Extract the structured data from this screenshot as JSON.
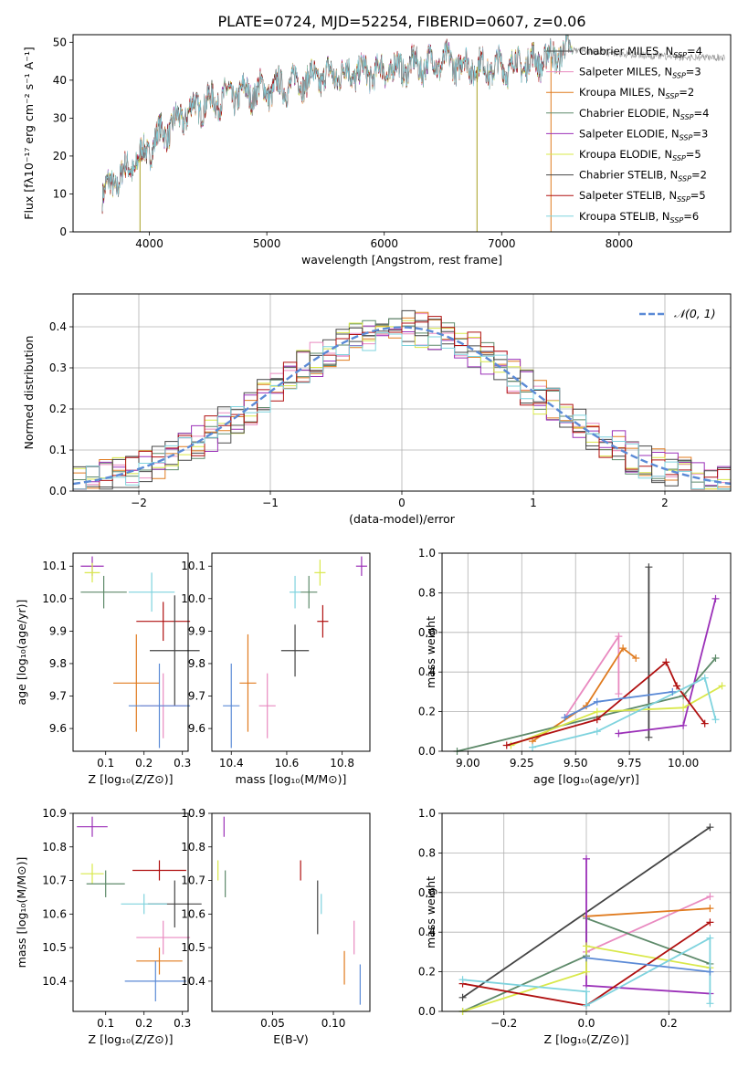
{
  "figure_title": "PLATE=0724, MJD=52254, FIBERID=0607, z=0.06",
  "model_colors": [
    "#4a4a4a",
    "#e98ac0",
    "#e07b1f",
    "#5e8a6a",
    "#9b30b8",
    "#d9e84a",
    "#444444",
    "#b01010",
    "#7fd3de"
  ],
  "chart_data": [
    {
      "id": "spectrum",
      "type": "line",
      "xlabel": "wavelength [Angstrom, rest frame]",
      "ylabel": "Flux [fλ10⁻¹⁷ erg cm⁻² s⁻¹ A⁻¹]",
      "xlim": [
        3350,
        8950
      ],
      "ylim": [
        0,
        52
      ],
      "xticks": [
        4000,
        5000,
        6000,
        7000,
        8000
      ],
      "yticks": [
        0,
        10,
        20,
        30,
        40,
        50
      ],
      "legend_position": "right",
      "legend": [
        {
          "label": "Chabrier MILES, N",
          "sub": "SSP",
          "n": "=4"
        },
        {
          "label": "Salpeter MILES, N",
          "sub": "SSP",
          "n": "=3"
        },
        {
          "label": "Kroupa MILES, N",
          "sub": "SSP",
          "n": "=2"
        },
        {
          "label": "Chabrier ELODIE, N",
          "sub": "SSP",
          "n": "=4"
        },
        {
          "label": "Salpeter ELODIE, N",
          "sub": "SSP",
          "n": "=3"
        },
        {
          "label": "Kroupa ELODIE, N",
          "sub": "SSP",
          "n": "=5"
        },
        {
          "label": "Chabrier STELIB, N",
          "sub": "SSP",
          "n": "=2"
        },
        {
          "label": "Salpeter STELIB, N",
          "sub": "SSP",
          "n": "=5"
        },
        {
          "label": "Kroupa STELIB, N",
          "sub": "SSP",
          "n": "=6"
        }
      ],
      "envelope": [
        [
          3600,
          10
        ],
        [
          3700,
          13
        ],
        [
          3800,
          16
        ],
        [
          3900,
          19
        ],
        [
          4000,
          22
        ],
        [
          4100,
          26
        ],
        [
          4200,
          28
        ],
        [
          4300,
          31
        ],
        [
          4400,
          33
        ],
        [
          4500,
          34
        ],
        [
          4700,
          36
        ],
        [
          4900,
          37
        ],
        [
          5100,
          38
        ],
        [
          5300,
          40
        ],
        [
          5500,
          41
        ],
        [
          5700,
          42
        ],
        [
          5900,
          42
        ],
        [
          6100,
          43
        ],
        [
          6300,
          44
        ],
        [
          6500,
          45
        ],
        [
          6700,
          44
        ],
        [
          6900,
          43
        ],
        [
          7100,
          44
        ],
        [
          7300,
          45
        ],
        [
          7500,
          47
        ],
        [
          7600,
          48
        ],
        [
          8000,
          47
        ],
        [
          8500,
          46
        ],
        [
          8900,
          46
        ]
      ],
      "data_end": 7600,
      "spikes": [
        [
          3920,
          0
        ],
        [
          6790,
          0
        ],
        [
          7420,
          0
        ]
      ]
    },
    {
      "id": "residual_histogram",
      "type": "step",
      "xlabel": "(data-model)/error",
      "ylabel": "Normed distribution",
      "xlim": [
        -2.5,
        2.5
      ],
      "ylim": [
        0,
        0.48
      ],
      "xticks": [
        -2,
        -1,
        0,
        1,
        2
      ],
      "yticks": [
        0.0,
        0.1,
        0.2,
        0.3,
        0.4
      ],
      "grid": true,
      "legend_position": "top-right",
      "reference_label": "𝒩(0, 1)",
      "reference_color": "#5b8ad6",
      "bin_width": 0.1
    },
    {
      "id": "age_vs_Z",
      "type": "errorbar",
      "xlabel": "Z [log₁₀(Z/Z⊙)]",
      "ylabel": "age  [log₁₀(age/yr)]",
      "xlim": [
        0.015,
        0.315
      ],
      "ylim": [
        9.53,
        10.14
      ],
      "xticks": [
        0.1,
        0.2,
        0.3
      ],
      "yticks": [
        9.6,
        9.7,
        9.8,
        9.9,
        10.0,
        10.1
      ],
      "points": [
        {
          "c": "#9b30b8",
          "x": 0.065,
          "xe": 0.03,
          "y": 10.1,
          "ye": 0.03
        },
        {
          "c": "#d9e84a",
          "x": 0.065,
          "xe": 0.02,
          "y": 10.08,
          "ye": 0.03
        },
        {
          "c": "#5e8a6a",
          "x": 0.095,
          "xe": 0.06,
          "y": 10.02,
          "ye": 0.05
        },
        {
          "c": "#7fd3de",
          "x": 0.22,
          "xe": 0.06,
          "y": 10.02,
          "ye": 0.06
        },
        {
          "c": "#b01010",
          "x": 0.25,
          "xe": 0.07,
          "y": 9.93,
          "ye": 0.06
        },
        {
          "c": "#444444",
          "x": 0.28,
          "xe": 0.065,
          "y": 9.84,
          "ye": 0.17
        },
        {
          "c": "#e07b1f",
          "x": 0.18,
          "xe": 0.06,
          "y": 9.74,
          "ye": 0.15
        },
        {
          "c": "#e98ac0",
          "x": 0.25,
          "xe": 0.06,
          "y": 9.67,
          "ye": 0.1
        },
        {
          "c": "#5b8ad6",
          "x": 0.24,
          "xe": 0.08,
          "y": 9.67,
          "ye": 0.13
        }
      ]
    },
    {
      "id": "age_vs_mass",
      "type": "errorbar",
      "xlabel": "mass [log₁₀(M/M⊙)]",
      "ylabel": "",
      "xlim": [
        10.33,
        10.9
      ],
      "ylim": [
        9.53,
        10.14
      ],
      "xticks": [
        10.4,
        10.6,
        10.8
      ],
      "yticks": [
        9.6,
        9.7,
        9.8,
        9.9,
        10.0,
        10.1
      ],
      "points": [
        {
          "c": "#9b30b8",
          "x": 10.87,
          "xe": 0.02,
          "y": 10.1,
          "ye": 0.03
        },
        {
          "c": "#d9e84a",
          "x": 10.72,
          "xe": 0.02,
          "y": 10.08,
          "ye": 0.04
        },
        {
          "c": "#5e8a6a",
          "x": 10.68,
          "xe": 0.03,
          "y": 10.02,
          "ye": 0.05
        },
        {
          "c": "#7fd3de",
          "x": 10.63,
          "xe": 0.02,
          "y": 10.02,
          "ye": 0.05
        },
        {
          "c": "#b01010",
          "x": 10.73,
          "xe": 0.02,
          "y": 9.93,
          "ye": 0.05
        },
        {
          "c": "#444444",
          "x": 10.63,
          "xe": 0.05,
          "y": 9.84,
          "ye": 0.08
        },
        {
          "c": "#e07b1f",
          "x": 10.46,
          "xe": 0.03,
          "y": 9.74,
          "ye": 0.15
        },
        {
          "c": "#e98ac0",
          "x": 10.53,
          "xe": 0.03,
          "y": 9.67,
          "ye": 0.1
        },
        {
          "c": "#5b8ad6",
          "x": 10.4,
          "xe": 0.03,
          "y": 9.67,
          "ye": 0.13
        }
      ]
    },
    {
      "id": "mass_weight_vs_age",
      "type": "line",
      "xlabel": "age  [log₁₀(age/yr)]",
      "ylabel": "mass weight",
      "xlim": [
        8.88,
        10.22
      ],
      "ylim": [
        0,
        1.0
      ],
      "xticks": [
        9.0,
        9.25,
        9.5,
        9.75,
        10.0
      ],
      "xticklabels": [
        "9.00",
        "9.25",
        "9.50",
        "9.75",
        "10.00"
      ],
      "yticks": [
        0.0,
        0.2,
        0.4,
        0.6,
        0.8,
        1.0
      ],
      "grid": true,
      "series": [
        {
          "c": "#444444",
          "pts": [
            [
              9.84,
              0.93
            ],
            [
              9.84,
              0.07
            ]
          ]
        },
        {
          "c": "#e98ac0",
          "pts": [
            [
              9.45,
              0.17
            ],
            [
              9.7,
              0.58
            ],
            [
              9.7,
              0.29
            ]
          ]
        },
        {
          "c": "#e07b1f",
          "pts": [
            [
              9.3,
              0.05
            ],
            [
              9.55,
              0.23
            ],
            [
              9.72,
              0.52
            ],
            [
              9.78,
              0.47
            ]
          ]
        },
        {
          "c": "#5e8a6a",
          "pts": [
            [
              8.95,
              0.0
            ],
            [
              10.0,
              0.28
            ],
            [
              10.15,
              0.47
            ]
          ]
        },
        {
          "c": "#9b30b8",
          "pts": [
            [
              9.7,
              0.09
            ],
            [
              10.0,
              0.13
            ],
            [
              10.15,
              0.77
            ]
          ]
        },
        {
          "c": "#d9e84a",
          "pts": [
            [
              9.2,
              0.03
            ],
            [
              9.6,
              0.2
            ],
            [
              10.0,
              0.22
            ],
            [
              10.18,
              0.33
            ]
          ]
        },
        {
          "c": "#b01010",
          "pts": [
            [
              9.18,
              0.03
            ],
            [
              9.6,
              0.16
            ],
            [
              9.92,
              0.45
            ],
            [
              9.97,
              0.33
            ],
            [
              10.1,
              0.14
            ]
          ]
        },
        {
          "c": "#7fd3de",
          "pts": [
            [
              9.3,
              0.02
            ],
            [
              9.6,
              0.1
            ],
            [
              10.1,
              0.37
            ],
            [
              10.15,
              0.16
            ]
          ]
        },
        {
          "c": "#5b8ad6",
          "pts": [
            [
              9.45,
              0.17
            ],
            [
              9.6,
              0.25
            ],
            [
              9.95,
              0.3
            ]
          ]
        }
      ]
    },
    {
      "id": "mass_vs_Z",
      "type": "errorbar",
      "xlabel": "Z [log₁₀(Z/Z⊙)]",
      "ylabel": "mass [log₁₀(M/M⊙)]",
      "xlim": [
        0.015,
        0.315
      ],
      "ylim": [
        10.31,
        10.9
      ],
      "xticks": [
        0.1,
        0.2,
        0.3
      ],
      "yticks": [
        10.4,
        10.5,
        10.6,
        10.7,
        10.8,
        10.9
      ],
      "points": [
        {
          "c": "#9b30b8",
          "x": 0.065,
          "xe": 0.04,
          "y": 10.86,
          "ye": 0.03
        },
        {
          "c": "#d9e84a",
          "x": 0.065,
          "xe": 0.03,
          "y": 10.72,
          "ye": 0.03
        },
        {
          "c": "#5e8a6a",
          "x": 0.1,
          "xe": 0.05,
          "y": 10.69,
          "ye": 0.04
        },
        {
          "c": "#b01010",
          "x": 0.24,
          "xe": 0.07,
          "y": 10.73,
          "ye": 0.03
        },
        {
          "c": "#444444",
          "x": 0.28,
          "xe": 0.07,
          "y": 10.63,
          "ye": 0.07
        },
        {
          "c": "#7fd3de",
          "x": 0.2,
          "xe": 0.06,
          "y": 10.63,
          "ye": 0.03
        },
        {
          "c": "#e98ac0",
          "x": 0.25,
          "xe": 0.07,
          "y": 10.53,
          "ye": 0.05
        },
        {
          "c": "#e07b1f",
          "x": 0.24,
          "xe": 0.06,
          "y": 10.46,
          "ye": 0.04
        },
        {
          "c": "#5b8ad6",
          "x": 0.23,
          "xe": 0.08,
          "y": 10.4,
          "ye": 0.06
        }
      ]
    },
    {
      "id": "mass_vs_ebv",
      "type": "errorbar",
      "xlabel": "E(B-V)",
      "ylabel": "",
      "xlim": [
        0.0,
        0.13
      ],
      "ylim": [
        10.31,
        10.9
      ],
      "xticks": [
        0.05,
        0.1
      ],
      "xticklabels": [
        "0.05",
        "0.10"
      ],
      "yticks": [
        10.4,
        10.5,
        10.6,
        10.7,
        10.8,
        10.9
      ],
      "points": [
        {
          "c": "#9b30b8",
          "x": 0.01,
          "xe": 0,
          "y": 10.86,
          "ye": 0.03
        },
        {
          "c": "#d9e84a",
          "x": 0.005,
          "xe": 0,
          "y": 10.73,
          "ye": 0.03
        },
        {
          "c": "#5e8a6a",
          "x": 0.011,
          "xe": 0,
          "y": 10.69,
          "ye": 0.04
        },
        {
          "c": "#b01010",
          "x": 0.073,
          "xe": 0,
          "y": 10.73,
          "ye": 0.03
        },
        {
          "c": "#444444",
          "x": 0.087,
          "xe": 0,
          "y": 10.62,
          "ye": 0.08
        },
        {
          "c": "#7fd3de",
          "x": 0.09,
          "xe": 0,
          "y": 10.63,
          "ye": 0.03
        },
        {
          "c": "#e98ac0",
          "x": 0.117,
          "xe": 0,
          "y": 10.53,
          "ye": 0.05
        },
        {
          "c": "#e07b1f",
          "x": 0.109,
          "xe": 0,
          "y": 10.44,
          "ye": 0.05
        },
        {
          "c": "#5b8ad6",
          "x": 0.122,
          "xe": 0,
          "y": 10.39,
          "ye": 0.06
        }
      ]
    },
    {
      "id": "mass_weight_vs_Z",
      "type": "line",
      "xlabel": "Z [log₁₀(Z/Z⊙)]",
      "ylabel": "mass weight",
      "xlim": [
        -0.35,
        0.35
      ],
      "ylim": [
        0,
        1.0
      ],
      "xticks": [
        -0.2,
        0.0,
        0.2
      ],
      "xticklabels": [
        "−0.2",
        "0.0",
        "0.2"
      ],
      "yticks": [
        0.0,
        0.2,
        0.4,
        0.6,
        0.8,
        1.0
      ],
      "grid": true,
      "series": [
        {
          "c": "#444444",
          "pts": [
            [
              -0.3,
              0.07
            ],
            [
              0.3,
              0.93
            ]
          ]
        },
        {
          "c": "#e98ac0",
          "pts": [
            [
              0.0,
              0.3
            ],
            [
              0.3,
              0.58
            ]
          ]
        },
        {
          "c": "#e07b1f",
          "pts": [
            [
              0.0,
              0.48
            ],
            [
              0.3,
              0.52
            ]
          ]
        },
        {
          "c": "#5e8a6a",
          "pts": [
            [
              -0.3,
              0.0
            ],
            [
              0.0,
              0.28
            ],
            [
              0.0,
              0.47
            ],
            [
              0.3,
              0.24
            ]
          ]
        },
        {
          "c": "#9b30b8",
          "pts": [
            [
              0.0,
              0.77
            ],
            [
              0.0,
              0.13
            ],
            [
              0.3,
              0.09
            ]
          ]
        },
        {
          "c": "#d9e84a",
          "pts": [
            [
              -0.3,
              0.0
            ],
            [
              0.0,
              0.2
            ],
            [
              0.0,
              0.33
            ],
            [
              0.3,
              0.22
            ]
          ]
        },
        {
          "c": "#b01010",
          "pts": [
            [
              -0.3,
              0.14
            ],
            [
              0.0,
              0.03
            ],
            [
              0.3,
              0.45
            ]
          ]
        },
        {
          "c": "#7fd3de",
          "pts": [
            [
              -0.3,
              0.16
            ],
            [
              0.0,
              0.1
            ],
            [
              0.0,
              0.03
            ],
            [
              0.3,
              0.37
            ],
            [
              0.3,
              0.04
            ]
          ]
        },
        {
          "c": "#5b8ad6",
          "pts": [
            [
              0.0,
              0.27
            ],
            [
              0.3,
              0.2
            ]
          ]
        }
      ]
    }
  ]
}
